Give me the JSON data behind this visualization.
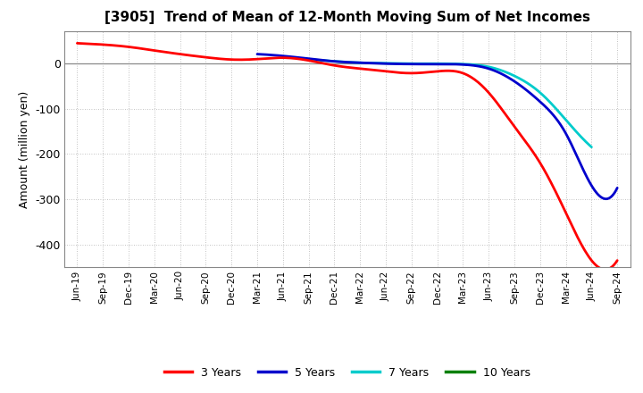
{
  "title": "[3905]  Trend of Mean of 12-Month Moving Sum of Net Incomes",
  "ylabel": "Amount (million yen)",
  "background_color": "#ffffff",
  "grid_color": "#b0b0b0",
  "ylim": [
    -450,
    70
  ],
  "yticks": [
    0,
    -100,
    -200,
    -300,
    -400
  ],
  "x_labels": [
    "Jun-19",
    "Sep-19",
    "Dec-19",
    "Mar-20",
    "Jun-20",
    "Sep-20",
    "Dec-20",
    "Mar-21",
    "Jun-21",
    "Sep-21",
    "Dec-21",
    "Mar-22",
    "Jun-22",
    "Sep-22",
    "Dec-22",
    "Mar-23",
    "Jun-23",
    "Sep-23",
    "Dec-23",
    "Mar-24",
    "Jun-24",
    "Sep-24"
  ],
  "series": {
    "3yr": {
      "color": "#ff0000",
      "label": "3 Years",
      "linewidth": 2.0,
      "data_x": [
        0,
        1,
        2,
        3,
        4,
        5,
        6,
        7,
        8,
        9,
        10,
        11,
        12,
        13,
        14,
        15,
        16,
        17,
        18,
        19,
        20,
        21
      ],
      "data_y": [
        44,
        41,
        36,
        28,
        20,
        13,
        8,
        9,
        12,
        6,
        -5,
        -12,
        -18,
        -22,
        -18,
        -22,
        -65,
        -140,
        -220,
        -330,
        -435,
        -435
      ]
    },
    "5yr": {
      "color": "#0000cc",
      "label": "5 Years",
      "linewidth": 2.0,
      "data_x": [
        7,
        8,
        9,
        10,
        11,
        12,
        13,
        14,
        15,
        16,
        17,
        18,
        19,
        20,
        21
      ],
      "data_y": [
        20,
        16,
        10,
        4,
        1,
        -1,
        -2,
        -2,
        -3,
        -12,
        -40,
        -85,
        -155,
        -270,
        -275
      ]
    },
    "7yr": {
      "color": "#00cccc",
      "label": "7 Years",
      "linewidth": 2.0,
      "data_x": [
        9,
        10,
        11,
        12,
        13,
        14,
        15,
        16,
        17,
        18,
        19,
        20
      ],
      "data_y": [
        8,
        4,
        1,
        0,
        -1,
        -1,
        -2,
        -8,
        -28,
        -65,
        -125,
        -185
      ]
    },
    "10yr": {
      "color": "#008000",
      "label": "10 Years",
      "linewidth": 2.0,
      "data_x": [],
      "data_y": []
    }
  },
  "legend_labels": [
    "3 Years",
    "5 Years",
    "7 Years",
    "10 Years"
  ],
  "legend_colors": [
    "#ff0000",
    "#0000cc",
    "#00cccc",
    "#008000"
  ]
}
